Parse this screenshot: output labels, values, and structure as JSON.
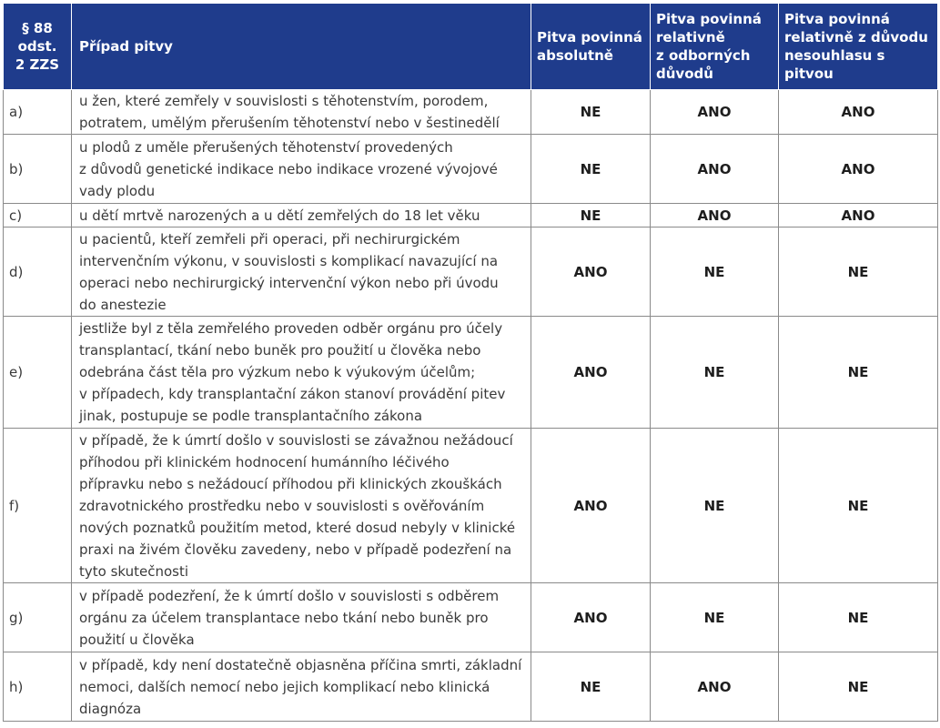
{
  "table": {
    "headers": {
      "paragraph": "§ 88\nodst.\n2 ZZS",
      "case": "Případ pitvy",
      "absolute": "Pitva povinná\nabsolutně",
      "relative_professional": "Pitva povinná\nrelativně\nz odborných\ndůvodů",
      "relative_disagreement": "Pitva povinná\nrelativně z důvodu\nnesouhlasu s pitvou"
    },
    "rows": [
      {
        "letter": "a)",
        "text": "u žen, které zemřely v souvislosti s těhotenstvím, porodem,\npotratem, umělým přerušením těhotenství nebo v šestinedělí",
        "absolute": "NE",
        "relative_professional": "ANO",
        "relative_disagreement": "ANO"
      },
      {
        "letter": "b)",
        "text": "u plodů z uměle přerušených těhotenství provedených\nz důvodů genetické indikace nebo indikace vrozené vývojové\nvady plodu",
        "absolute": "NE",
        "relative_professional": "ANO",
        "relative_disagreement": "ANO"
      },
      {
        "letter": "c)",
        "text": "u dětí mrtvě narozených a u dětí zemřelých do 18 let věku",
        "absolute": "NE",
        "relative_professional": "ANO",
        "relative_disagreement": "ANO"
      },
      {
        "letter": "d)",
        "text": "u pacientů, kteří zemřeli při operaci, při nechirurgickém\nintervenčním výkonu, v souvislosti s komplikací navazující na\noperaci nebo nechirurgický intervenční výkon nebo při úvodu\ndo anestezie",
        "absolute": "ANO",
        "relative_professional": "NE",
        "relative_disagreement": "NE"
      },
      {
        "letter": "e)",
        "text": "jestliže byl z těla zemřelého proveden odběr orgánu pro účely\ntransplantací, tkání nebo buněk pro použití u člověka nebo\nodebrána část těla pro výzkum nebo k výukovým účelům;\nv případech, kdy transplantační zákon stanoví provádění pitev\njinak, postupuje se podle transplantačního zákona",
        "absolute": "ANO",
        "relative_professional": "NE",
        "relative_disagreement": "NE"
      },
      {
        "letter": "f)",
        "text": "v případě, že k úmrtí došlo v souvislosti se závažnou nežádoucí\npříhodou při klinickém hodnocení humánního léčivého\npřípravku nebo s nežádoucí příhodou při klinických zkouškách\nzdravotnického prostředku nebo v souvislosti s ověřováním\nnových poznatků použitím metod, které dosud nebyly v klinické\npraxi na živém člověku zavedeny, nebo v případě podezření na\ntyto skutečnosti",
        "absolute": "ANO",
        "relative_professional": "NE",
        "relative_disagreement": "NE"
      },
      {
        "letter": "g)",
        "text": "v případě podezření, že k úmrtí došlo v souvislosti s odběrem\norgánu za účelem transplantace nebo tkání nebo buněk pro\npoužití u člověka",
        "absolute": "ANO",
        "relative_professional": "NE",
        "relative_disagreement": "NE"
      },
      {
        "letter": "h)",
        "text": "v případě, kdy není dostatečně objasněna příčina smrti, základní\nnemoci, dalších nemocí nebo jejich komplikací nebo klinická\ndiagnóza",
        "absolute": "NE",
        "relative_professional": "ANO",
        "relative_disagreement": "NE"
      }
    ]
  }
}
